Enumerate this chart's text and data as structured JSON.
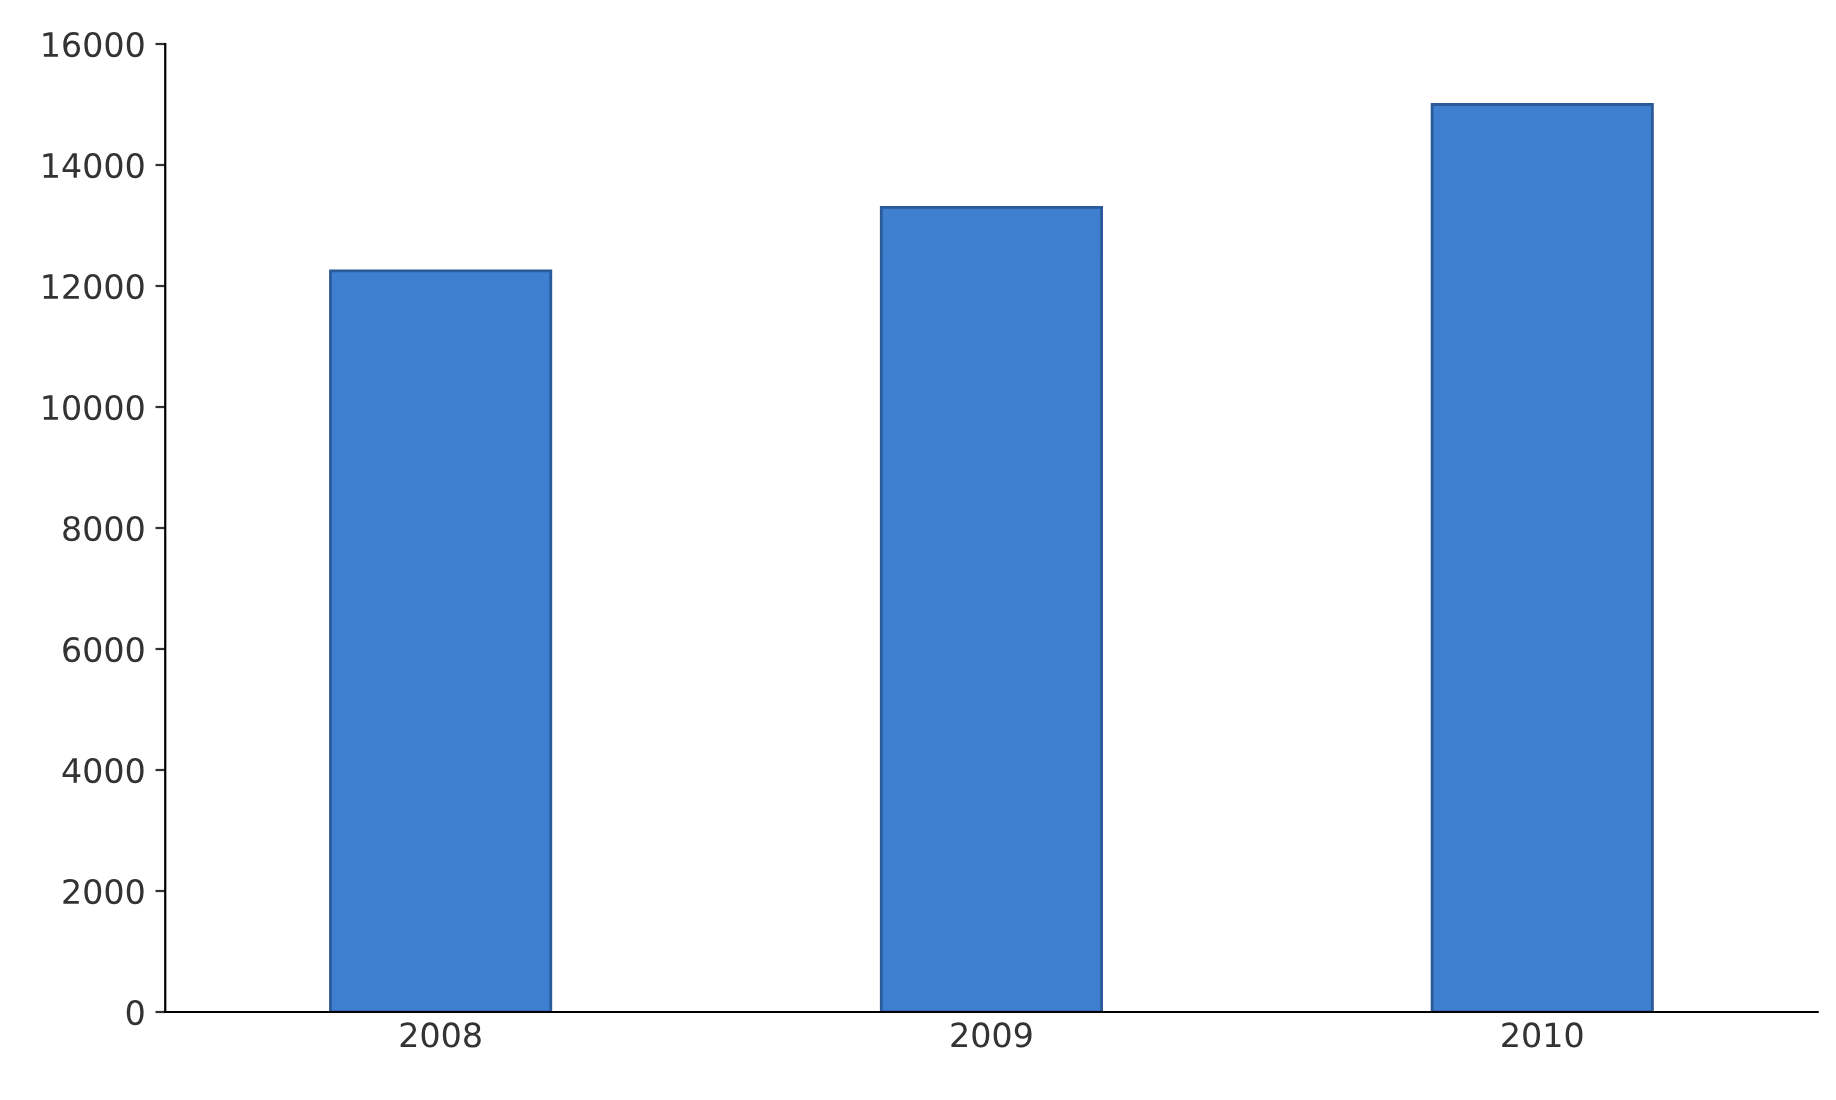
{
  "chart_data": {
    "type": "bar",
    "categories": [
      "2008",
      "2009",
      "2010"
    ],
    "values": [
      12250,
      13300,
      15000
    ],
    "color": "#3f7fd0",
    "ylim": [
      0,
      16000
    ],
    "yticks": [
      0,
      2000,
      4000,
      6000,
      8000,
      10000,
      12000,
      14000,
      16000
    ],
    "grid": false
  }
}
